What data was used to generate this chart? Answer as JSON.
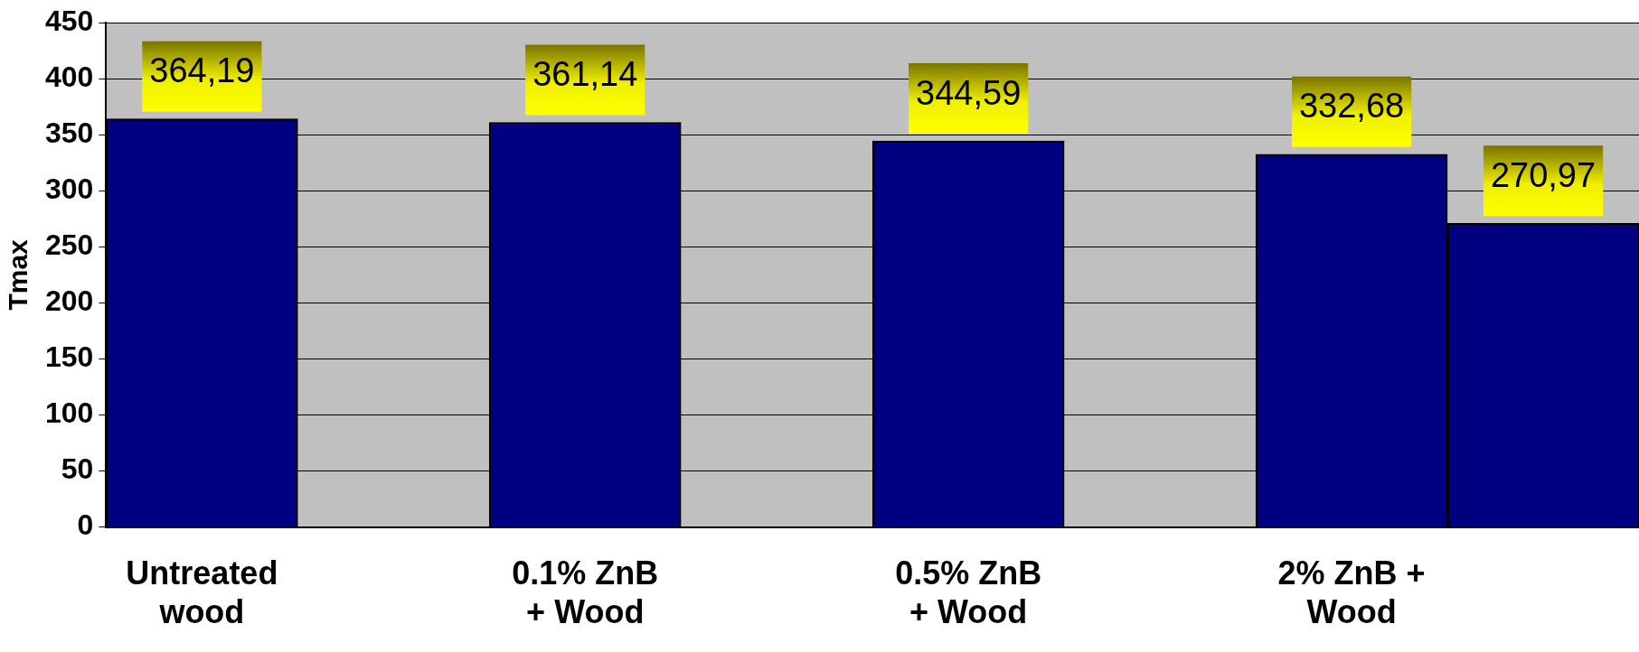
{
  "chart_data": {
    "type": "bar",
    "ylabel": "Tmax",
    "categories": [
      "Untreated wood",
      null,
      "0.1% ZnB + Wood",
      null,
      "0.5% ZnB + Wood",
      null,
      "2% ZnB + Wood",
      null
    ],
    "values": [
      364.19,
      null,
      361.14,
      null,
      344.59,
      null,
      332.68,
      270.97
    ],
    "value_labels": [
      "364,19",
      null,
      "361,14",
      null,
      "344,59",
      null,
      "332,68",
      "270,97"
    ],
    "color": "#000080",
    "ylim": [
      0,
      450
    ],
    "yticks": [
      0,
      50,
      100,
      150,
      200,
      250,
      300,
      350,
      400,
      450
    ],
    "grid": "y",
    "legend": false
  }
}
